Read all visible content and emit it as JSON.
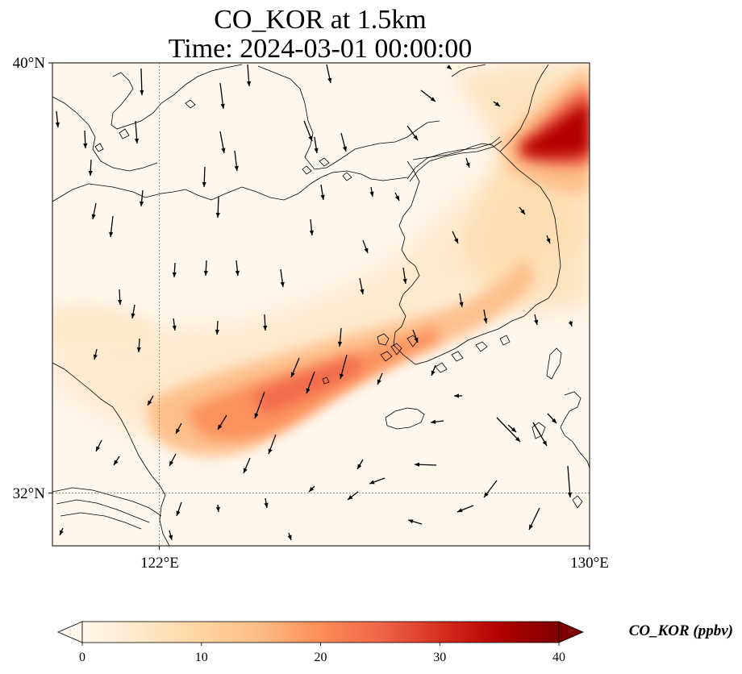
{
  "map": {
    "title_line1": "CO_KOR at 1.5km",
    "title_line2": "Time: 2024-03-01 00:00:00",
    "lat_range": [
      30.8,
      40.0
    ],
    "lon_range": [
      119.0,
      130.0
    ],
    "lat_ticks": [
      {
        "label": "40°N",
        "value": 40
      },
      {
        "label": "32°N",
        "value": 32
      }
    ],
    "lon_ticks": [
      {
        "label": "122°E",
        "value": 122
      },
      {
        "label": "130°E",
        "value": 130
      }
    ],
    "gridlines": {
      "lat": [
        32
      ],
      "lon": [
        122
      ],
      "style": "dotted"
    }
  },
  "colorbar": {
    "label": "CO_KOR (ppbv)",
    "ticks": [
      "0",
      "10",
      "20",
      "30",
      "40"
    ],
    "min": 0,
    "max": 40,
    "extend": "both",
    "colormap": "OrRd",
    "colors": [
      "#fff7ec",
      "#fee8c8",
      "#fdd49e",
      "#fdbb84",
      "#fc8d59",
      "#ef6548",
      "#d7301f",
      "#b30000",
      "#7f0000"
    ]
  },
  "colors": {
    "coastline": "#000000",
    "wind_vectors": "#000000",
    "background": "#ffffff"
  }
}
